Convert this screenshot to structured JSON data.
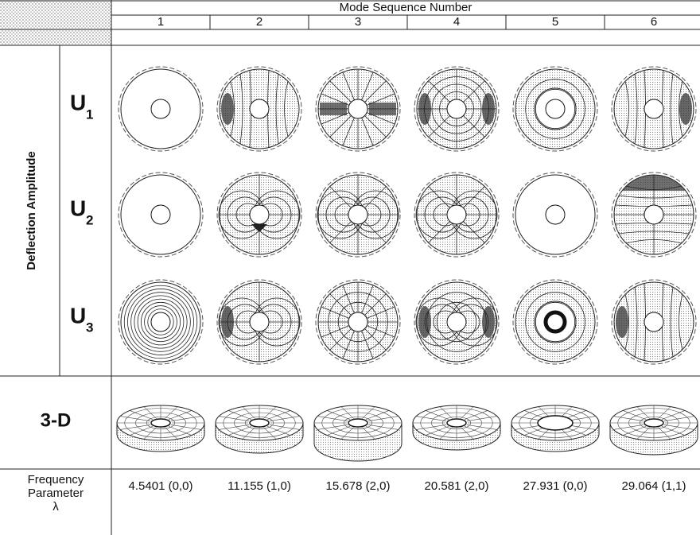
{
  "header": {
    "title": "Mode Sequence Number",
    "modes": [
      "1",
      "2",
      "3",
      "4",
      "5",
      "6"
    ]
  },
  "side": {
    "label": "Deflection Amplitude",
    "rows": [
      {
        "symbol": "U",
        "subscript": "1"
      },
      {
        "symbol": "U",
        "subscript": "2"
      },
      {
        "symbol": "U",
        "subscript": "3"
      }
    ],
    "view_label": "3-D",
    "frequency_label": [
      "Frequency",
      "Parameter",
      "λ"
    ]
  },
  "frequencies": [
    "4.5401 (0,0)",
    "11.155 (1,0)",
    "15.678 (2,0)",
    "20.581 (2,0)",
    "27.931 (0,0)",
    "29.064 (1,1)"
  ]
}
